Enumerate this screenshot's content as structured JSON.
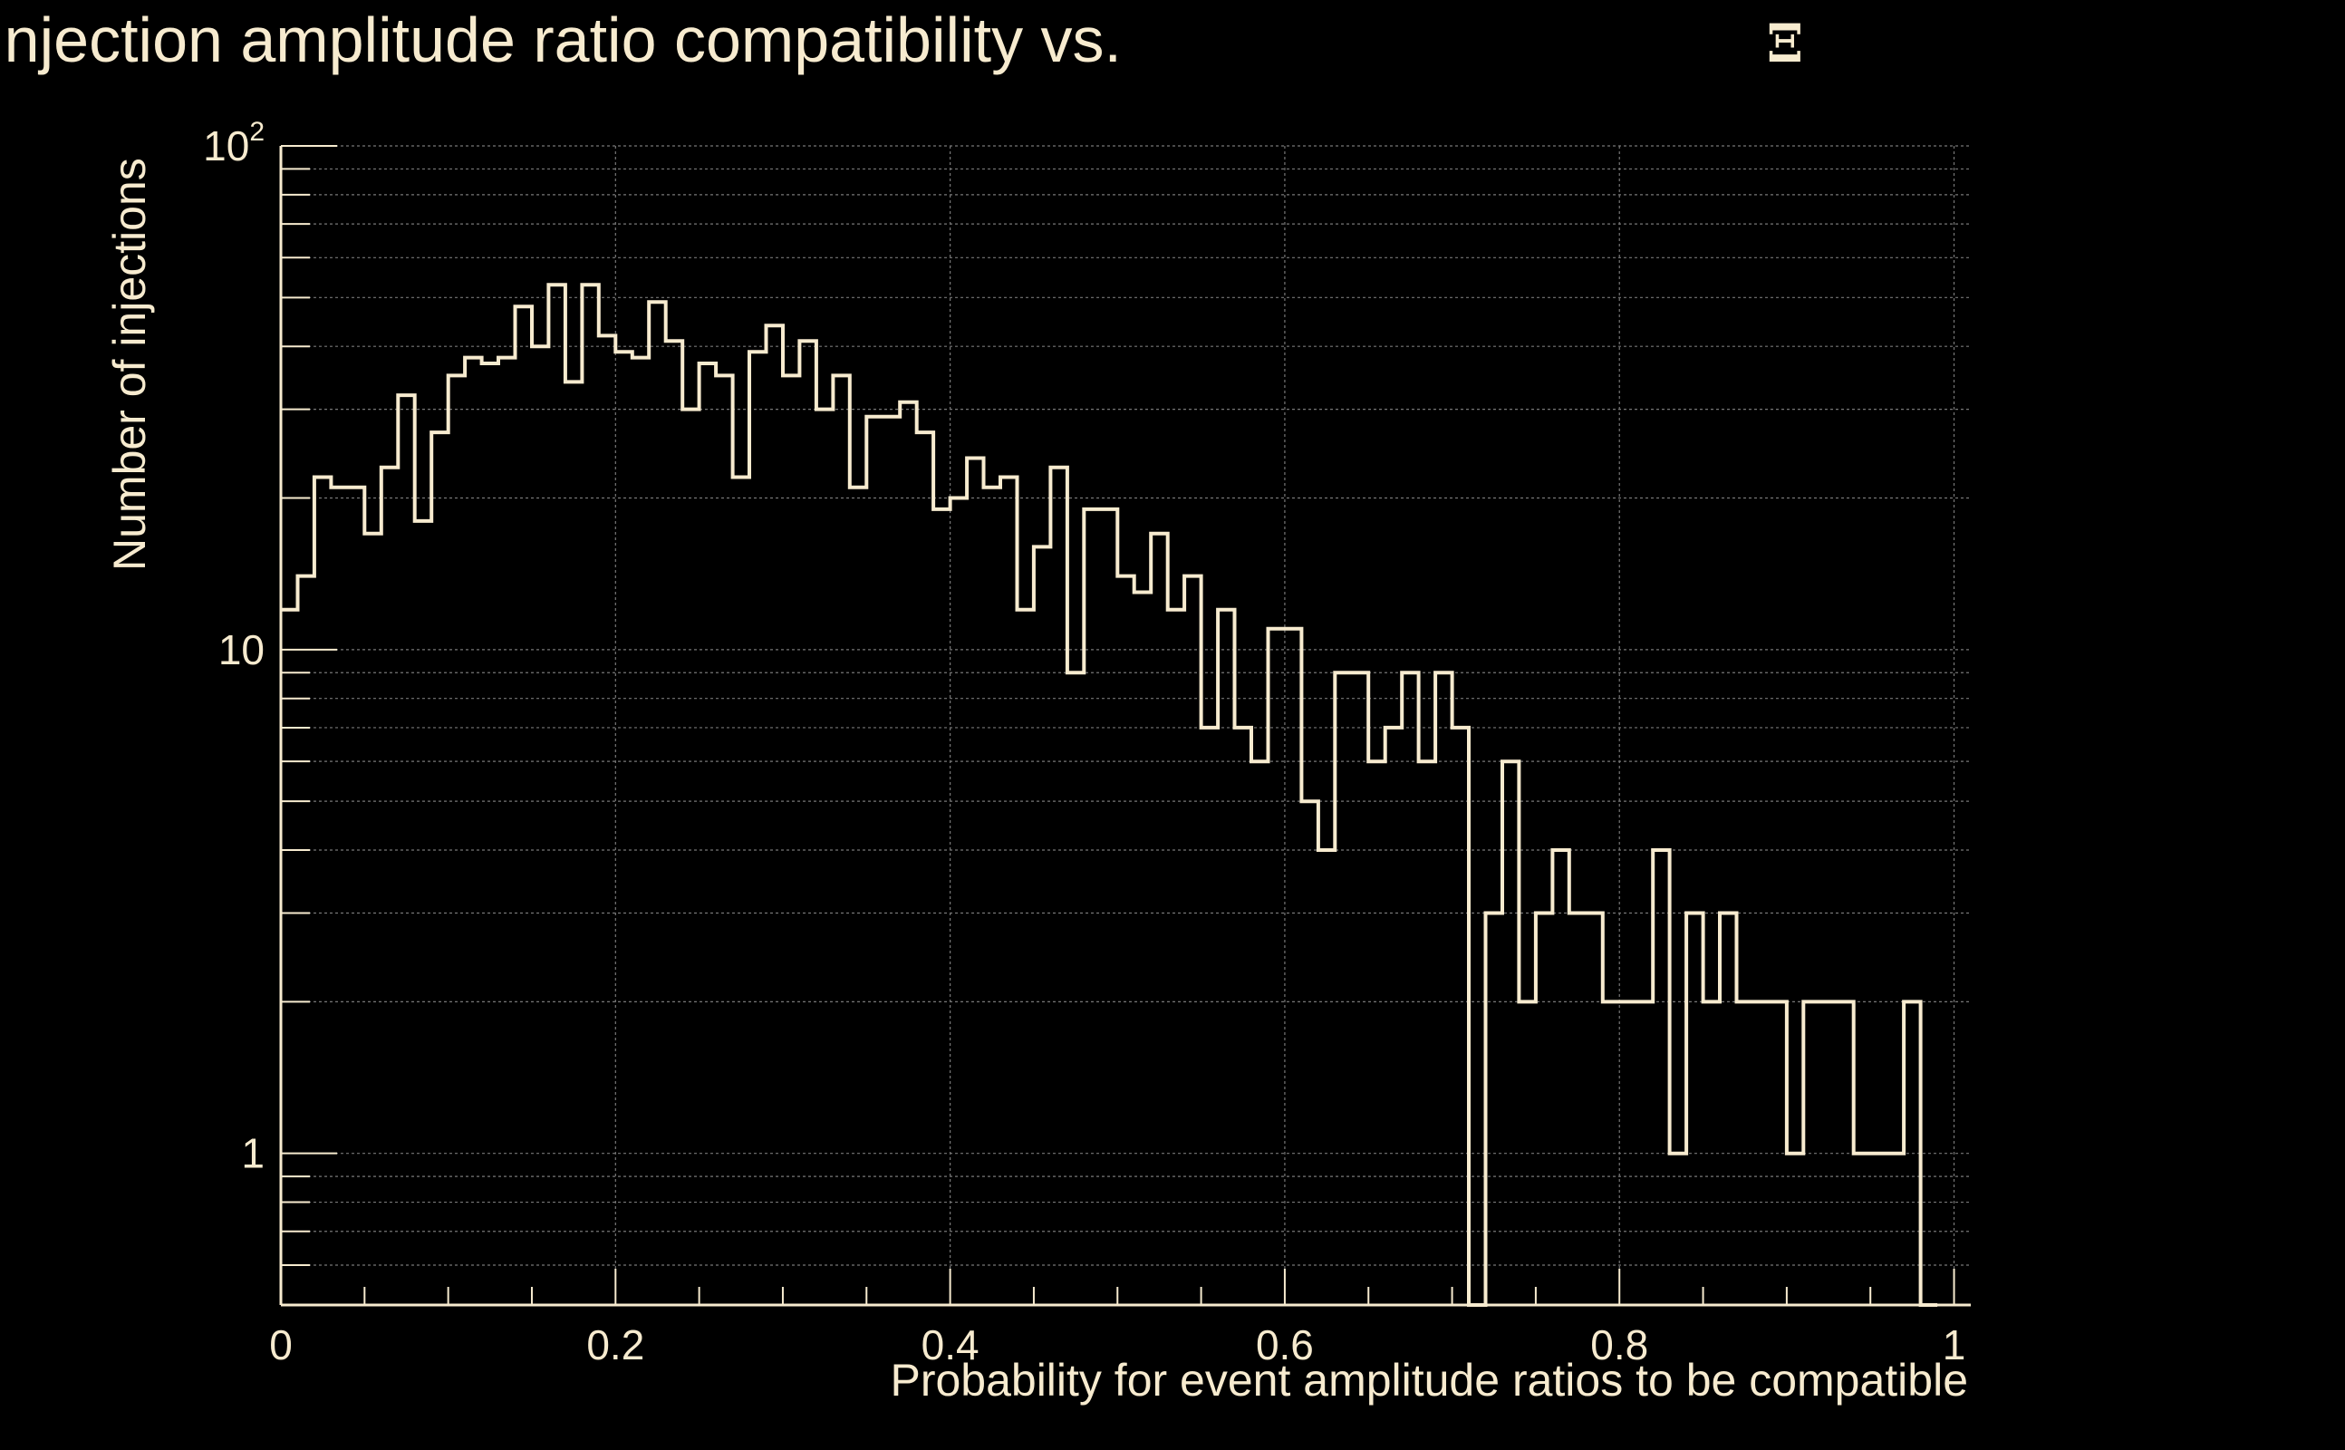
{
  "chart_data": {
    "type": "histogram",
    "title": "Injection amplitude ratio compatibility vs.",
    "title_symbol": "Ξ",
    "xlabel": "Probability for event amplitude ratios to be compatible",
    "ylabel": "Number of injections",
    "xlim": [
      0,
      1.01
    ],
    "ylim": [
      0.5,
      100
    ],
    "yscale": "log",
    "grid": true,
    "x_ticks": [
      {
        "value": 0,
        "label": "0"
      },
      {
        "value": 0.2,
        "label": "0.2"
      },
      {
        "value": 0.4,
        "label": "0.4"
      },
      {
        "value": 0.6,
        "label": "0.6"
      },
      {
        "value": 0.8,
        "label": "0.8"
      },
      {
        "value": 1,
        "label": "1"
      }
    ],
    "y_ticks": [
      {
        "value": 1,
        "label": "1"
      },
      {
        "value": 10,
        "label": "10"
      },
      {
        "value": 100,
        "base": "10",
        "exp": "2"
      }
    ],
    "bin_width": 0.01,
    "values": [
      12,
      14,
      22,
      21,
      21,
      17,
      23,
      32,
      18,
      27,
      35,
      38,
      37,
      38,
      48,
      40,
      53,
      34,
      53,
      42,
      39,
      38,
      49,
      41,
      30,
      37,
      35,
      22,
      39,
      44,
      35,
      41,
      30,
      35,
      21,
      29,
      29,
      31,
      27,
      19,
      20,
      24,
      21,
      22,
      12,
      16,
      23,
      9,
      19,
      19,
      14,
      13,
      17,
      12,
      14,
      7,
      12,
      7,
      6,
      11,
      11,
      5,
      4,
      9,
      9,
      6,
      7,
      9,
      6,
      9,
      7,
      0,
      3,
      6,
      2,
      3,
      4,
      3,
      3,
      2,
      2,
      2,
      4,
      1,
      3,
      2,
      3,
      2,
      2,
      2,
      1,
      2,
      2,
      2,
      1,
      1,
      1,
      2,
      0
    ],
    "line_color": "#f7ebcf",
    "background_color": "#000000",
    "grid_color": "#777777"
  }
}
